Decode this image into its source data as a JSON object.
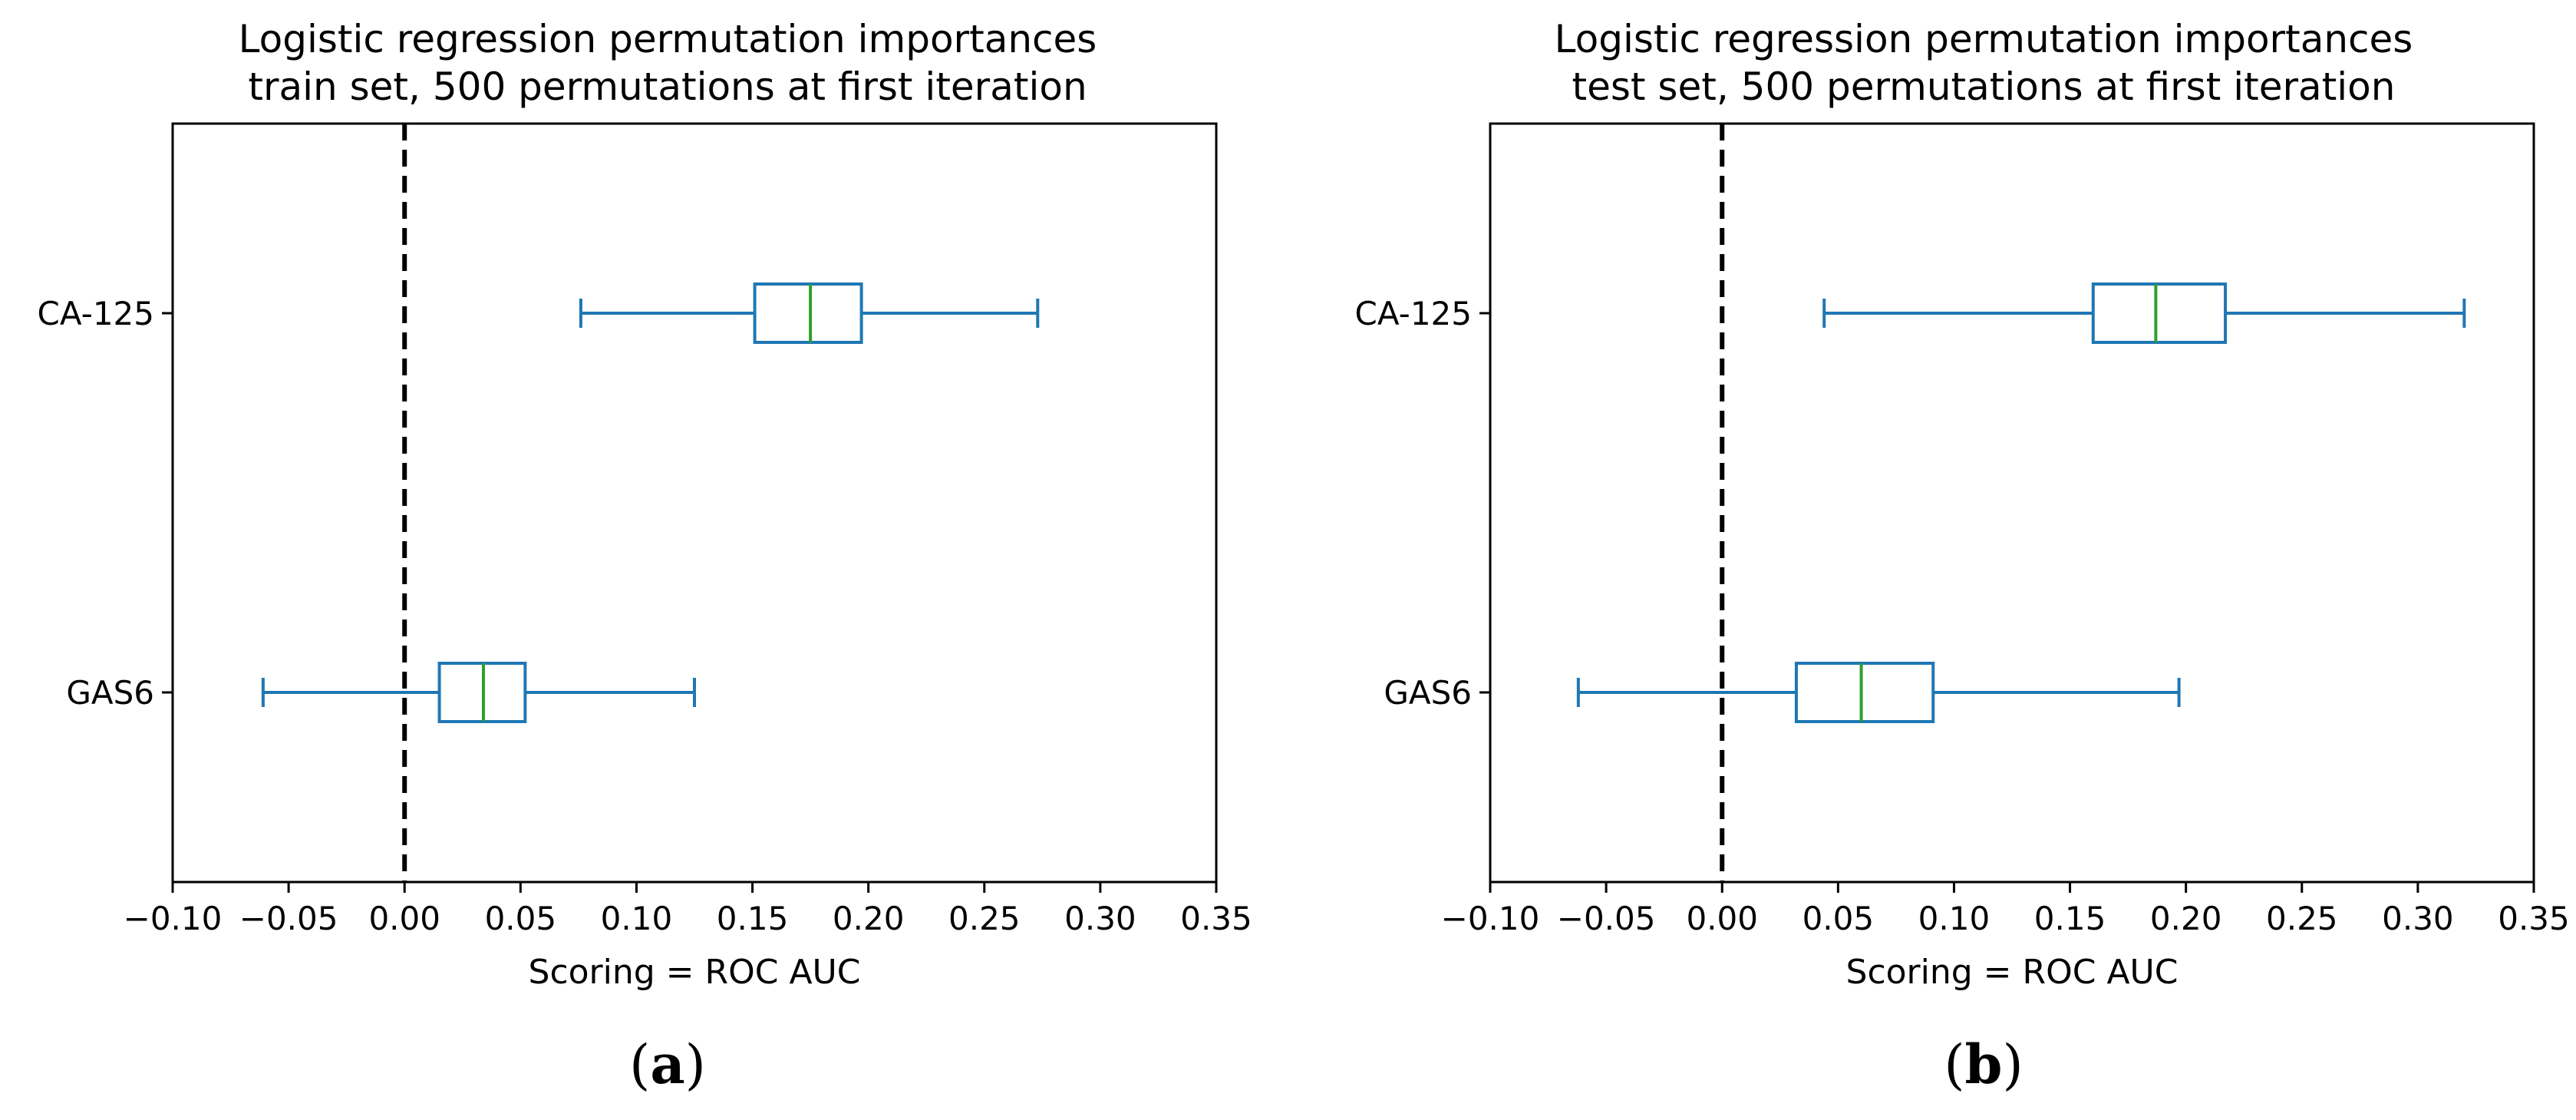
{
  "chart_data": [
    {
      "type": "boxplot",
      "panel_label": {
        "open": "(",
        "letter": "a",
        "close": ")"
      },
      "title": [
        "Logistic regression permutation importances",
        "train set, 500 permutations at first iteration"
      ],
      "xlabel": "Scoring = ROC AUC",
      "ylabel": "",
      "xlim": [
        -0.1,
        0.35
      ],
      "xticks": [
        -0.1,
        -0.05,
        0.0,
        0.05,
        0.1,
        0.15,
        0.2,
        0.25,
        0.3,
        0.35
      ],
      "xtick_labels": [
        "−0.10",
        "−0.05",
        "0.00",
        "0.05",
        "0.10",
        "0.15",
        "0.20",
        "0.25",
        "0.30",
        "0.35"
      ],
      "reference_line": {
        "x": 0.0,
        "style": "dashed"
      },
      "categories": [
        "CA-125",
        "GAS6"
      ],
      "boxes": [
        {
          "label": "CA-125",
          "whisker_low": 0.076,
          "q1": 0.151,
          "median": 0.175,
          "q3": 0.197,
          "whisker_high": 0.273
        },
        {
          "label": "GAS6",
          "whisker_low": -0.061,
          "q1": 0.015,
          "median": 0.034,
          "q3": 0.052,
          "whisker_high": 0.125
        }
      ],
      "grid": false
    },
    {
      "type": "boxplot",
      "panel_label": {
        "open": "(",
        "letter": "b",
        "close": ")"
      },
      "title": [
        "Logistic regression permutation importances",
        "test set, 500 permutations at first iteration"
      ],
      "xlabel": "Scoring = ROC AUC",
      "ylabel": "",
      "xlim": [
        -0.1,
        0.35
      ],
      "xticks": [
        -0.1,
        -0.05,
        0.0,
        0.05,
        0.1,
        0.15,
        0.2,
        0.25,
        0.3,
        0.35
      ],
      "xtick_labels": [
        "−0.10",
        "−0.05",
        "0.00",
        "0.05",
        "0.10",
        "0.15",
        "0.20",
        "0.25",
        "0.30",
        "0.35"
      ],
      "reference_line": {
        "x": 0.0,
        "style": "dashed"
      },
      "categories": [
        "CA-125",
        "GAS6"
      ],
      "boxes": [
        {
          "label": "CA-125",
          "whisker_low": 0.044,
          "q1": 0.16,
          "median": 0.187,
          "q3": 0.217,
          "whisker_high": 0.32
        },
        {
          "label": "GAS6",
          "whisker_low": -0.062,
          "q1": 0.032,
          "median": 0.06,
          "q3": 0.091,
          "whisker_high": 0.197
        }
      ],
      "grid": false
    }
  ],
  "colors": {
    "box": "#1f77b4",
    "median": "#2ca02c",
    "axes": "#000000",
    "reference_line": "#000000"
  }
}
